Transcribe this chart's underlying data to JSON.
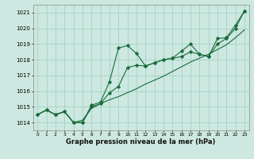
{
  "xlabel": "Graphe pression niveau de la mer (hPa)",
  "bg_color": "#cce8e0",
  "grid_color": "#9ecdc0",
  "line_color": "#1a6b3a",
  "x": [
    0,
    1,
    2,
    3,
    4,
    5,
    6,
    7,
    8,
    9,
    10,
    11,
    12,
    13,
    14,
    15,
    16,
    17,
    18,
    19,
    20,
    21,
    22,
    23
  ],
  "vals1": [
    1014.5,
    1014.8,
    1014.5,
    1014.7,
    1014.0,
    1014.0,
    1015.1,
    1015.3,
    1016.6,
    1018.75,
    1018.9,
    1018.4,
    1017.6,
    1017.8,
    1018.0,
    1018.1,
    1018.55,
    1019.0,
    1018.35,
    1018.2,
    1019.35,
    1019.4,
    1020.2,
    1021.1
  ],
  "vals2": [
    1014.5,
    1014.8,
    1014.5,
    1014.7,
    1014.0,
    1014.0,
    1015.0,
    1015.2,
    1015.9,
    1016.3,
    1017.5,
    1017.65,
    1017.6,
    1017.8,
    1018.0,
    1018.1,
    1018.2,
    1018.5,
    1018.35,
    1018.2,
    1019.0,
    1019.35,
    1020.0,
    1021.1
  ],
  "vals3": [
    1014.5,
    1014.8,
    1014.5,
    1014.7,
    1014.0,
    1014.15,
    1014.9,
    1015.2,
    1015.45,
    1015.65,
    1015.9,
    1016.15,
    1016.45,
    1016.7,
    1016.95,
    1017.25,
    1017.55,
    1017.85,
    1018.1,
    1018.35,
    1018.65,
    1018.95,
    1019.4,
    1019.9
  ],
  "ylim": [
    1013.5,
    1021.5
  ],
  "xlim": [
    -0.5,
    23.5
  ],
  "yticks": [
    1014,
    1015,
    1016,
    1017,
    1018,
    1019,
    1020,
    1021
  ],
  "xticks": [
    0,
    1,
    2,
    3,
    4,
    5,
    6,
    7,
    8,
    9,
    10,
    11,
    12,
    13,
    14,
    15,
    16,
    17,
    18,
    19,
    20,
    21,
    22,
    23
  ]
}
